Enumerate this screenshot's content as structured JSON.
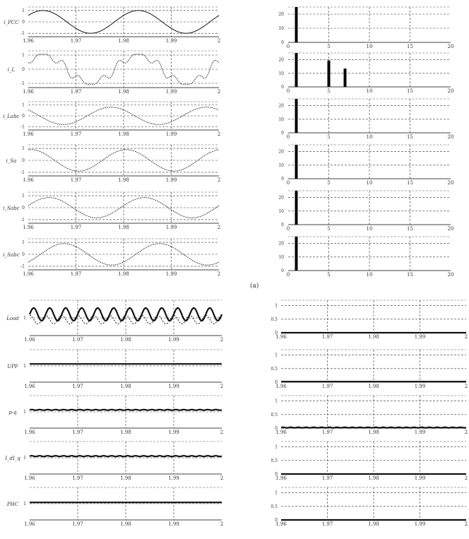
{
  "figure": {
    "marker": "(a)",
    "top_left_ylabels": [
      "i_PCC",
      "i_L",
      "i_Labc",
      "i_Sa",
      "i_Sabc",
      "i_Sabc"
    ],
    "bottom_left_ylabels": [
      "Load",
      "UPF",
      "p-q",
      "I_dI_q",
      "PHC"
    ],
    "time_ticks": [
      "1.96",
      "1.97",
      "1.98",
      "1.99",
      "2"
    ],
    "harm_ticks": [
      "0",
      "5",
      "10",
      "15",
      "20"
    ],
    "harm_yticks": [
      "0",
      "10",
      "20"
    ]
  },
  "chart_data": [
    {
      "id": "tl1",
      "type": "line",
      "ylabel": "i_PCC",
      "xlim": [
        1.96,
        2
      ],
      "ylim": [
        -1.3,
        1.3
      ],
      "yticks": [
        -1,
        0,
        1
      ],
      "xticks": [
        "1.96",
        "1.97",
        "1.98",
        "1.99",
        "2"
      ],
      "grid": true,
      "series": [
        {
          "kind": "sine",
          "amp": 1,
          "freq": 50,
          "phase": 0.6,
          "style": "solid"
        }
      ]
    },
    {
      "id": "tl2",
      "type": "line",
      "ylabel": "i_L",
      "xlim": [
        1.96,
        2
      ],
      "ylim": [
        -1.3,
        1.3
      ],
      "yticks": [
        -1,
        0,
        1
      ],
      "xticks": [
        "1.96",
        "1.97",
        "1.98",
        "1.99",
        "2"
      ],
      "grid": true,
      "series": [
        {
          "kind": "distorted",
          "amp": 1,
          "freq": 50,
          "phase": 0.6,
          "h5": 0.2,
          "h7": 0.14,
          "style": "dotted"
        }
      ]
    },
    {
      "id": "tl3",
      "type": "line",
      "ylabel": "i_Labc",
      "xlim": [
        1.96,
        2
      ],
      "ylim": [
        -1.3,
        1.3
      ],
      "yticks": [
        -1,
        0,
        1
      ],
      "xticks": [
        "1.96",
        "1.97",
        "1.98",
        "1.99",
        "2"
      ],
      "grid": true,
      "series": [
        {
          "kind": "sine",
          "amp": 0.8,
          "freq": 50,
          "phase": 2.4,
          "style": "dotted"
        }
      ]
    },
    {
      "id": "tl4",
      "type": "line",
      "ylabel": "i_Sa",
      "xlim": [
        1.96,
        2
      ],
      "ylim": [
        -1.3,
        1.3
      ],
      "yticks": [
        -1,
        0,
        1
      ],
      "xticks": [
        "1.96",
        "1.97",
        "1.98",
        "1.99",
        "2"
      ],
      "grid": true,
      "series": [
        {
          "kind": "sine",
          "amp": 0.9,
          "freq": 50,
          "phase": 1.4,
          "style": "dotted"
        }
      ]
    },
    {
      "id": "tl5",
      "type": "line",
      "ylabel": "i_Sabc",
      "xlim": [
        1.96,
        2
      ],
      "ylim": [
        -1.3,
        1.3
      ],
      "yticks": [
        -1,
        0,
        1
      ],
      "xticks": [
        "1.96",
        "1.97",
        "1.98",
        "1.99",
        "2"
      ],
      "grid": true,
      "series": [
        {
          "kind": "sine",
          "amp": 0.85,
          "freq": 50,
          "phase": 0.2,
          "style": "dotted"
        }
      ]
    },
    {
      "id": "tl6",
      "type": "line",
      "ylabel": "i_Sabc",
      "xlim": [
        1.96,
        2
      ],
      "ylim": [
        -1.3,
        1.3
      ],
      "yticks": [
        -1,
        0,
        1
      ],
      "xticks": [
        "1.96",
        "1.97",
        "1.98",
        "1.99",
        "2"
      ],
      "grid": true,
      "series": [
        {
          "kind": "sine",
          "amp": 0.9,
          "freq": 50,
          "phase": -0.8,
          "style": "dotted"
        }
      ]
    },
    {
      "id": "tr1",
      "type": "bar",
      "xlim": [
        0,
        20
      ],
      "ylim": [
        0,
        25
      ],
      "xticks": [
        "0",
        "5",
        "10",
        "15",
        "20"
      ],
      "yticks": [
        "0",
        "10",
        "20"
      ],
      "harmonics": [
        1
      ],
      "values": [
        25
      ]
    },
    {
      "id": "tr2",
      "type": "bar",
      "xlim": [
        0,
        20
      ],
      "ylim": [
        0,
        25
      ],
      "xticks": [
        "0",
        "5",
        "10",
        "15",
        "20"
      ],
      "yticks": [
        "0",
        "10",
        "20"
      ],
      "harmonics": [
        1,
        5,
        7
      ],
      "values": [
        25,
        19.5,
        13.5
      ]
    },
    {
      "id": "tr3",
      "type": "bar",
      "xlim": [
        0,
        20
      ],
      "ylim": [
        0,
        25
      ],
      "xticks": [
        "0",
        "5",
        "10",
        "15",
        "20"
      ],
      "yticks": [
        "0",
        "10",
        "20"
      ],
      "harmonics": [
        1
      ],
      "values": [
        25
      ]
    },
    {
      "id": "tr4",
      "type": "bar",
      "xlim": [
        0,
        20
      ],
      "ylim": [
        0,
        25
      ],
      "xticks": [
        "0",
        "5",
        "10",
        "15",
        "20"
      ],
      "yticks": [
        "0",
        "10",
        "20"
      ],
      "harmonics": [
        1
      ],
      "values": [
        25
      ]
    },
    {
      "id": "tr5",
      "type": "bar",
      "xlim": [
        0,
        20
      ],
      "ylim": [
        0,
        25
      ],
      "xticks": [
        "0",
        "5",
        "10",
        "15",
        "20"
      ],
      "yticks": [
        "0",
        "10",
        "20"
      ],
      "harmonics": [
        1
      ],
      "values": [
        25
      ]
    },
    {
      "id": "tr6",
      "type": "bar",
      "xlim": [
        0,
        20
      ],
      "ylim": [
        0,
        25
      ],
      "xticks": [
        "0",
        "5",
        "10",
        "15",
        "20"
      ],
      "yticks": [
        "0",
        "10",
        "20"
      ],
      "harmonics": [
        1
      ],
      "values": [
        25
      ]
    },
    {
      "id": "bl1",
      "type": "line",
      "ylabel": "Load",
      "xlim": [
        1.96,
        2
      ],
      "ylim": [
        0.5,
        1.5
      ],
      "yticks": [
        "1"
      ],
      "xticks": [
        "1.96",
        "1.97",
        "1.98",
        "1.99",
        "2"
      ],
      "grid": true,
      "series": [
        {
          "kind": "ripple",
          "base": 1.1,
          "amp": 0.18,
          "freq": 300,
          "style": "bold"
        },
        {
          "kind": "ripple",
          "base": 0.95,
          "amp": 0.12,
          "freq": 300,
          "phase": 1.5,
          "style": "dashed"
        }
      ]
    },
    {
      "id": "bl2",
      "type": "line",
      "ylabel": "UPF",
      "xlim": [
        1.96,
        2
      ],
      "ylim": [
        0.5,
        1.5
      ],
      "yticks": [
        "1"
      ],
      "xticks": [
        "1.96",
        "1.97",
        "1.98",
        "1.99",
        "2"
      ],
      "grid": true,
      "series": [
        {
          "kind": "flat",
          "base": 1.06,
          "style": "bold"
        }
      ]
    },
    {
      "id": "bl3",
      "type": "line",
      "ylabel": "p-q",
      "xlim": [
        1.96,
        2
      ],
      "ylim": [
        0.5,
        1.5
      ],
      "yticks": [
        "1"
      ],
      "xticks": [
        "1.96",
        "1.97",
        "1.98",
        "1.99",
        "2"
      ],
      "grid": true,
      "series": [
        {
          "kind": "ripple",
          "base": 1.06,
          "amp": 0.01,
          "freq": 600,
          "style": "bold"
        }
      ]
    },
    {
      "id": "bl4",
      "type": "line",
      "ylabel": "I_dI_q",
      "xlim": [
        1.96,
        2
      ],
      "ylim": [
        0.5,
        1.5
      ],
      "yticks": [
        "1"
      ],
      "xticks": [
        "1.96",
        "1.97",
        "1.98",
        "1.99",
        "2"
      ],
      "grid": true,
      "series": [
        {
          "kind": "ripple",
          "base": 1.05,
          "amp": 0.012,
          "freq": 600,
          "style": "bold"
        }
      ]
    },
    {
      "id": "bl5",
      "type": "line",
      "ylabel": "PHC",
      "xlim": [
        1.96,
        2
      ],
      "ylim": [
        0.5,
        1.5
      ],
      "yticks": [
        "1"
      ],
      "xticks": [
        "1.96",
        "1.97",
        "1.98",
        "1.99",
        "2"
      ],
      "grid": true,
      "series": [
        {
          "kind": "flat",
          "base": 1.04,
          "style": "bold"
        }
      ]
    },
    {
      "id": "br1",
      "type": "line",
      "xlim": [
        1.96,
        2
      ],
      "ylim": [
        0,
        1.2
      ],
      "yticks": [
        "0",
        "0.5",
        "1"
      ],
      "xticks": [
        "1.96",
        "1.97",
        "1.98",
        "1.99",
        "2"
      ],
      "grid": true,
      "series": [
        {
          "kind": "flat",
          "base": 0.0,
          "style": "bold"
        }
      ]
    },
    {
      "id": "br2",
      "type": "line",
      "xlim": [
        1.96,
        2
      ],
      "ylim": [
        0,
        1.2
      ],
      "yticks": [
        "0",
        "0.5",
        "1"
      ],
      "xticks": [
        "1.96",
        "1.97",
        "1.98",
        "1.99",
        "2"
      ],
      "grid": true,
      "series": [
        {
          "kind": "flat",
          "base": 0.02,
          "style": "bold"
        }
      ]
    },
    {
      "id": "br3",
      "type": "line",
      "xlim": [
        1.96,
        2
      ],
      "ylim": [
        0,
        1.2
      ],
      "yticks": [
        "0",
        "0.5",
        "1"
      ],
      "xticks": [
        "1.96",
        "1.97",
        "1.98",
        "1.99",
        "2"
      ],
      "grid": true,
      "series": [
        {
          "kind": "ripple",
          "base": 0.02,
          "amp": 0.01,
          "freq": 600,
          "style": "bold"
        }
      ]
    },
    {
      "id": "br4",
      "type": "line",
      "xlim": [
        1.96,
        2
      ],
      "ylim": [
        0,
        1.2
      ],
      "yticks": [
        "0",
        "0.5",
        "1"
      ],
      "xticks": [
        "1.96",
        "1.97",
        "1.98",
        "1.99",
        "2"
      ],
      "grid": true,
      "series": [
        {
          "kind": "flat",
          "base": 0.0,
          "style": "bold"
        }
      ]
    },
    {
      "id": "br5",
      "type": "line",
      "xlim": [
        1.96,
        2
      ],
      "ylim": [
        0,
        1.2
      ],
      "yticks": [
        "0",
        "0.5",
        "1"
      ],
      "xticks": [
        "1.96",
        "1.97",
        "1.98",
        "1.99",
        "2"
      ],
      "grid": true,
      "series": [
        {
          "kind": "flat",
          "base": 0.0,
          "style": "bold"
        }
      ]
    }
  ]
}
